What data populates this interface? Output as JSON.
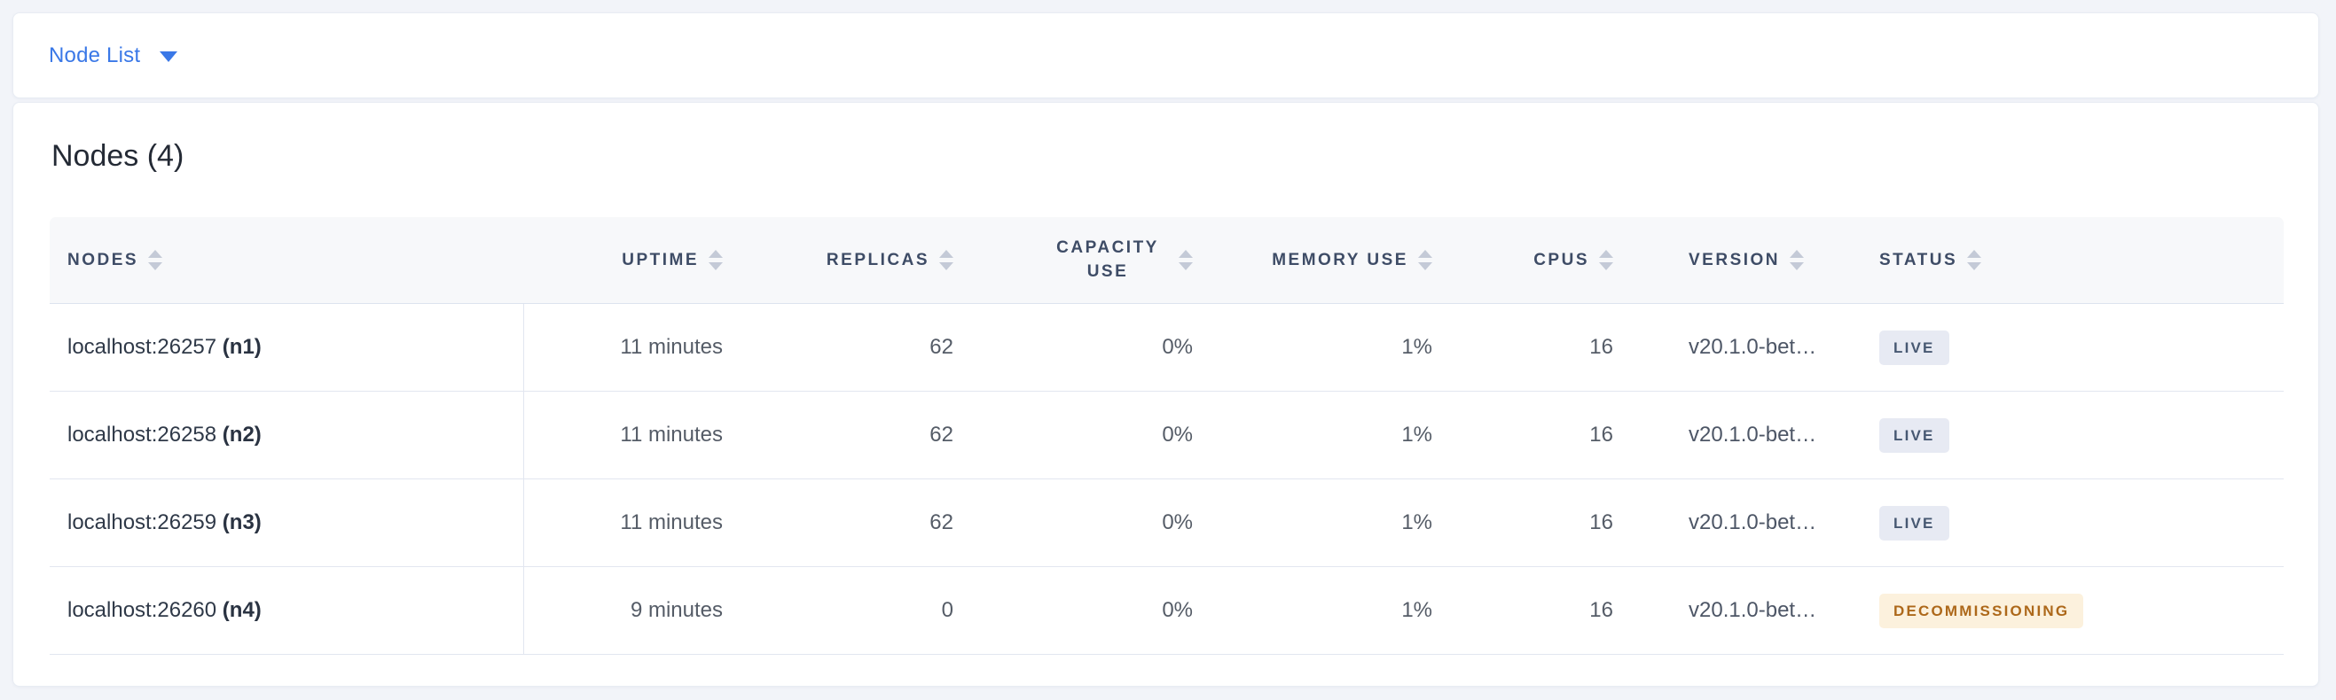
{
  "header": {
    "dropdown_label": "Node List"
  },
  "nodes": {
    "title": "Nodes (4)",
    "count": 4,
    "columns": [
      {
        "id": "nodes",
        "label": "NODES",
        "align": "left",
        "sortable": true
      },
      {
        "id": "uptime",
        "label": "UPTIME",
        "align": "right",
        "sortable": true
      },
      {
        "id": "replicas",
        "label": "REPLICAS",
        "align": "right",
        "sortable": true
      },
      {
        "id": "capacity-use",
        "label": "CAPACITY USE",
        "align": "right",
        "sortable": true,
        "wrap": true
      },
      {
        "id": "memory-use",
        "label": "MEMORY USE",
        "align": "right",
        "sortable": true
      },
      {
        "id": "cpus",
        "label": "CPUS",
        "align": "right",
        "sortable": true
      },
      {
        "id": "version",
        "label": "VERSION",
        "align": "left",
        "sortable": true
      },
      {
        "id": "status",
        "label": "STATUS",
        "align": "left",
        "sortable": true
      }
    ],
    "rows": [
      {
        "address": "localhost:26257",
        "node_id": "(n1)",
        "uptime": "11 minutes",
        "replicas": "62",
        "capacity_use": "0%",
        "memory_use": "1%",
        "cpus": "16",
        "version": "v20.1.0-bet…",
        "status": "LIVE",
        "status_variant": "live"
      },
      {
        "address": "localhost:26258",
        "node_id": "(n2)",
        "uptime": "11 minutes",
        "replicas": "62",
        "capacity_use": "0%",
        "memory_use": "1%",
        "cpus": "16",
        "version": "v20.1.0-bet…",
        "status": "LIVE",
        "status_variant": "live"
      },
      {
        "address": "localhost:26259",
        "node_id": "(n3)",
        "uptime": "11 minutes",
        "replicas": "62",
        "capacity_use": "0%",
        "memory_use": "1%",
        "cpus": "16",
        "version": "v20.1.0-bet…",
        "status": "LIVE",
        "status_variant": "live"
      },
      {
        "address": "localhost:26260",
        "node_id": "(n4)",
        "uptime": "9 minutes",
        "replicas": "0",
        "capacity_use": "0%",
        "memory_use": "1%",
        "cpus": "16",
        "version": "v20.1.0-bet…",
        "status": "DECOMMISSIONING",
        "status_variant": "decommissioning"
      }
    ]
  },
  "colors": {
    "link_blue": "#3a78e7",
    "page_background": "#f2f4f9",
    "header_row_background": "#f7f8fa",
    "header_text": "#3e4c66",
    "row_border": "#e2e6f0",
    "live_badge_background": "#e7eaf3",
    "live_badge_text": "#475872",
    "decommissioning_badge_background": "#fcf1dd",
    "decommissioning_badge_text": "#ad681a"
  }
}
